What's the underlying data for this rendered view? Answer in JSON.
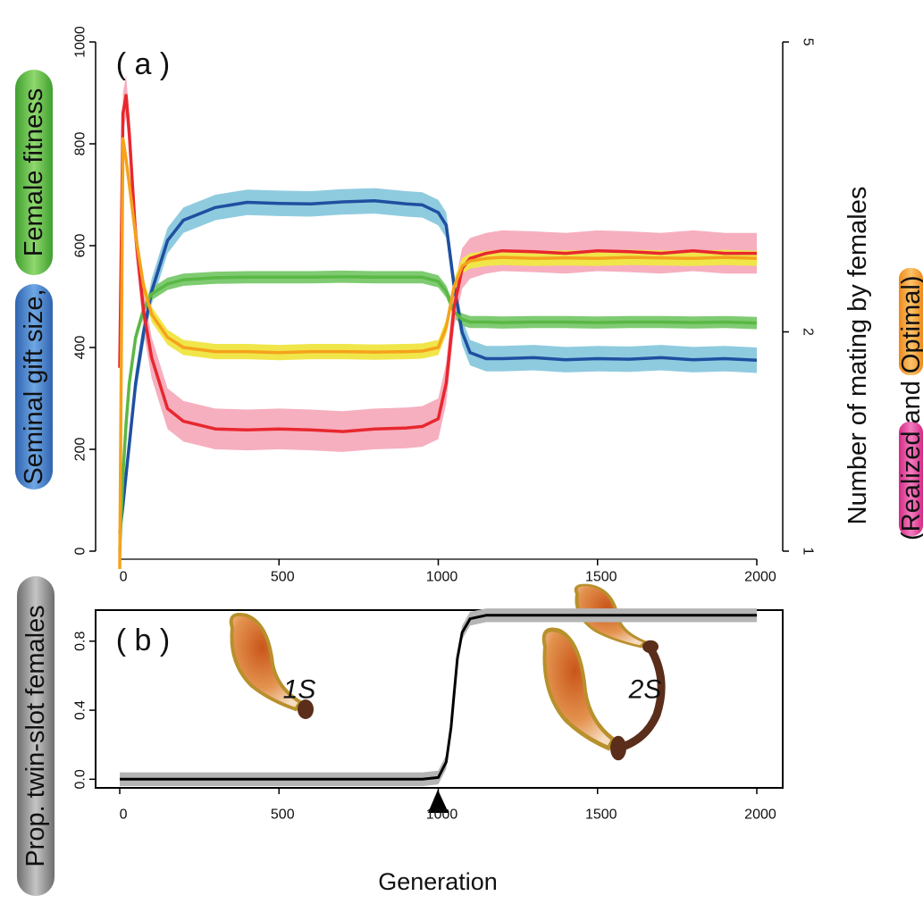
{
  "chart_data": [
    {
      "type": "line",
      "title": "( a )",
      "ylabel": [
        "Seminal gift size,",
        "Female fitness"
      ],
      "y2label": "Number of mating by females",
      "y2label_note": [
        "(",
        "Realized",
        "and",
        "Optimal",
        ")"
      ],
      "xlim": [
        -80,
        2080
      ],
      "xticks": [
        0,
        500,
        1000,
        1500,
        2000
      ],
      "ylim": [
        0,
        1000
      ],
      "yticks": [
        0,
        200,
        400,
        600,
        800,
        1000
      ],
      "y2lim": [
        1,
        5
      ],
      "y2ticks": [
        1,
        2,
        5
      ],
      "y2log": true,
      "x": [
        0,
        10,
        20,
        30,
        50,
        75,
        100,
        150,
        200,
        300,
        400,
        500,
        600,
        700,
        800,
        900,
        950,
        1000,
        1025,
        1050,
        1075,
        1100,
        1150,
        1200,
        1300,
        1400,
        1500,
        1600,
        1700,
        1800,
        1900,
        2000
      ],
      "series": [
        {
          "color": "#1f4fa0",
          "band_color": "#8fcbdf",
          "band": 25,
          "values": [
            35,
            90,
            150,
            210,
            330,
            430,
            510,
            610,
            650,
            675,
            685,
            683,
            682,
            686,
            688,
            682,
            680,
            665,
            640,
            520,
            430,
            390,
            378,
            378,
            380,
            376,
            378,
            377,
            380,
            376,
            378,
            375
          ]
        },
        {
          "color": "#5ab845",
          "band_color": "#7fcb72",
          "band": 12,
          "values": [
            0,
            150,
            250,
            330,
            420,
            475,
            505,
            525,
            533,
            537,
            538,
            538,
            538,
            539,
            538,
            538,
            538,
            530,
            510,
            470,
            455,
            450,
            450,
            449,
            450,
            450,
            449,
            450,
            450,
            449,
            450,
            448
          ]
        },
        {
          "color": "#e8272e",
          "band_color": "#f6afbf",
          "band": 40,
          "values": [
            360,
            860,
            895,
            820,
            620,
            470,
            380,
            280,
            255,
            240,
            238,
            240,
            238,
            235,
            240,
            242,
            245,
            260,
            330,
            480,
            555,
            575,
            585,
            590,
            588,
            585,
            590,
            588,
            585,
            590,
            585,
            585
          ]
        },
        {
          "color": "#f5a21c",
          "band_color": "#f0e64a",
          "band": 15,
          "values": [
            -35,
            810,
            770,
            720,
            620,
            520,
            465,
            420,
            400,
            392,
            392,
            390,
            392,
            392,
            391,
            392,
            393,
            400,
            440,
            520,
            560,
            570,
            575,
            577,
            575,
            576,
            575,
            577,
            576,
            575,
            577,
            575
          ]
        }
      ]
    },
    {
      "type": "line",
      "title": "( b )",
      "ylabel": "Prop. twin-slot females",
      "xlabel": "Generation",
      "annotations": [
        "1S",
        "2S"
      ],
      "xlim": [
        -80,
        2080
      ],
      "xticks": [
        0,
        500,
        1000,
        1500,
        2000
      ],
      "ylim": [
        -0.05,
        0.98
      ],
      "yticks": [
        {
          "value": 0,
          "label": "0.0"
        },
        0.4,
        0.8
      ],
      "x": [
        0,
        500,
        950,
        1000,
        1025,
        1040,
        1050,
        1060,
        1075,
        1100,
        1150,
        1200,
        1500,
        2000
      ],
      "series": [
        {
          "color": "#000000",
          "band_color": "#b5b5b5",
          "band": 0.04,
          "values": [
            0,
            0,
            0,
            0.01,
            0.1,
            0.3,
            0.5,
            0.7,
            0.85,
            0.93,
            0.95,
            0.95,
            0.95,
            0.95
          ]
        }
      ]
    }
  ]
}
